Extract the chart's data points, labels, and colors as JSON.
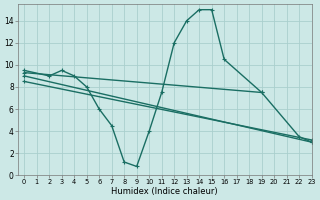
{
  "xlabel": "Humidex (Indice chaleur)",
  "bg_color": "#cce8e6",
  "grid_color": "#aacfcd",
  "line_color": "#1a6e63",
  "xlim": [
    -0.5,
    23
  ],
  "ylim": [
    0,
    15.5
  ],
  "xticks": [
    0,
    1,
    2,
    3,
    4,
    5,
    6,
    7,
    8,
    9,
    10,
    11,
    12,
    13,
    14,
    15,
    16,
    17,
    18,
    19,
    20,
    21,
    22,
    23
  ],
  "yticks": [
    0,
    2,
    4,
    6,
    8,
    10,
    12,
    14
  ],
  "line_zigzag": {
    "x": [
      0,
      2,
      3,
      4,
      5,
      6,
      7,
      8,
      9,
      10,
      11,
      12,
      13,
      14,
      15,
      16,
      19,
      22,
      23
    ],
    "y": [
      9.5,
      9.0,
      9.5,
      9.0,
      8.0,
      6.0,
      4.5,
      1.2,
      0.8,
      4.0,
      7.5,
      12.0,
      14.0,
      15.0,
      15.0,
      10.5,
      7.5,
      3.5,
      3.0
    ]
  },
  "line_flat": {
    "x": [
      0,
      19
    ],
    "y": [
      9.3,
      7.5
    ]
  },
  "line_decline1": {
    "x": [
      0,
      23
    ],
    "y": [
      9.0,
      3.0
    ]
  },
  "line_decline2": {
    "x": [
      0,
      23
    ],
    "y": [
      8.5,
      3.2
    ]
  }
}
